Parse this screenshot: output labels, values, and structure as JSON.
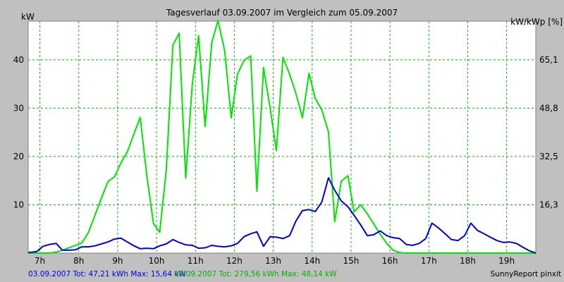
{
  "chart_data": {
    "type": "line",
    "title": "Tagesverlauf 03.09.2007 im Vergleich zum 05.09.2007",
    "ylabel_left": "kW",
    "ylabel_right": "kW/kWp [%]",
    "xlim": [
      6.7,
      19.75
    ],
    "ylim": [
      0,
      48
    ],
    "x_ticks": [
      {
        "value": 7,
        "label": "7h"
      },
      {
        "value": 8,
        "label": "8h"
      },
      {
        "value": 9,
        "label": "9h"
      },
      {
        "value": 10,
        "label": "10h"
      },
      {
        "value": 11,
        "label": "11h"
      },
      {
        "value": 12,
        "label": "12h"
      },
      {
        "value": 13,
        "label": "13h"
      },
      {
        "value": 14,
        "label": "14h"
      },
      {
        "value": 15,
        "label": "15h"
      },
      {
        "value": 16,
        "label": "16h"
      },
      {
        "value": 17,
        "label": "17h"
      },
      {
        "value": 18,
        "label": "18h"
      },
      {
        "value": 19,
        "label": "19h"
      }
    ],
    "y_ticks_left": [
      {
        "value": 10,
        "label": "10"
      },
      {
        "value": 20,
        "label": "20"
      },
      {
        "value": 30,
        "label": "30"
      },
      {
        "value": 40,
        "label": "40"
      }
    ],
    "y_ticks_right": [
      {
        "value": 10,
        "label": "16,3"
      },
      {
        "value": 20,
        "label": "32,5"
      },
      {
        "value": 30,
        "label": "48,8"
      },
      {
        "value": 40,
        "label": "65,1"
      }
    ],
    "grid": true,
    "series": [
      {
        "name": "03.09.2007",
        "color": "#0000e6",
        "x": [
          6.7,
          6.92,
          7.08,
          7.25,
          7.42,
          7.58,
          7.75,
          7.92,
          8.08,
          8.25,
          8.42,
          8.58,
          8.75,
          8.92,
          9.08,
          9.25,
          9.42,
          9.58,
          9.75,
          9.92,
          10.08,
          10.25,
          10.42,
          10.58,
          10.75,
          10.92,
          11.08,
          11.25,
          11.42,
          11.58,
          11.75,
          11.92,
          12.08,
          12.25,
          12.42,
          12.58,
          12.75,
          12.92,
          13.08,
          13.25,
          13.42,
          13.58,
          13.75,
          13.92,
          14.08,
          14.25,
          14.42,
          14.58,
          14.75,
          14.92,
          15.08,
          15.25,
          15.42,
          15.58,
          15.75,
          15.92,
          16.08,
          16.25,
          16.42,
          16.58,
          16.75,
          16.92,
          17.08,
          17.25,
          17.42,
          17.58,
          17.75,
          17.92,
          18.08,
          18.25,
          18.42,
          18.58,
          18.75,
          18.92,
          19.08,
          19.25,
          19.42,
          19.58,
          19.75
        ],
        "y": [
          0.1,
          0.3,
          1.4,
          1.8,
          2.0,
          0.6,
          0.6,
          0.7,
          1.3,
          1.3,
          1.5,
          1.9,
          2.3,
          2.9,
          3.1,
          2.3,
          1.5,
          0.9,
          1.0,
          0.9,
          1.5,
          1.9,
          2.8,
          2.2,
          1.7,
          1.6,
          1.0,
          1.1,
          1.6,
          1.4,
          1.3,
          1.5,
          2.0,
          3.4,
          4.0,
          4.4,
          1.4,
          3.4,
          3.3,
          3.0,
          3.6,
          6.6,
          8.8,
          9.0,
          8.6,
          10.6,
          15.6,
          13.0,
          10.8,
          9.6,
          7.8,
          5.8,
          3.6,
          3.8,
          4.6,
          3.6,
          3.2,
          3.0,
          1.8,
          1.6,
          2.0,
          3.0,
          6.2,
          5.2,
          4.0,
          2.8,
          2.6,
          3.6,
          6.2,
          4.7,
          4.0,
          3.3,
          2.6,
          2.2,
          2.3,
          2.0,
          1.2,
          0.5,
          0.0
        ]
      },
      {
        "name": "05.09.2007",
        "color": "#00e600",
        "x": [
          6.7,
          6.92,
          7.08,
          7.25,
          7.42,
          7.58,
          7.75,
          7.92,
          8.08,
          8.25,
          8.42,
          8.58,
          8.75,
          8.92,
          9.08,
          9.25,
          9.42,
          9.58,
          9.75,
          9.92,
          10.08,
          10.25,
          10.42,
          10.58,
          10.75,
          10.92,
          11.08,
          11.25,
          11.42,
          11.58,
          11.75,
          11.92,
          12.08,
          12.25,
          12.42,
          12.58,
          12.75,
          12.92,
          13.08,
          13.25,
          13.42,
          13.58,
          13.75,
          13.92,
          14.08,
          14.25,
          14.42,
          14.58,
          14.75,
          14.92,
          15.08,
          15.25,
          15.42,
          15.58,
          15.75,
          15.92,
          16.08,
          16.25,
          16.42,
          16.58,
          16.75,
          16.92,
          17.08,
          17.25,
          17.42,
          17.58,
          17.75,
          17.92,
          18.08,
          18.25,
          18.42,
          18.58,
          18.75,
          18.92,
          19.08,
          19.25,
          19.42,
          19.58,
          19.75
        ],
        "y": [
          0.0,
          0.0,
          0.0,
          0.0,
          0.2,
          0.6,
          1.1,
          1.6,
          2.1,
          4.3,
          7.9,
          11.3,
          14.8,
          15.8,
          18.6,
          21.0,
          24.7,
          28.1,
          16.0,
          6.1,
          4.3,
          17.2,
          43.0,
          45.5,
          15.5,
          35.0,
          45.0,
          26.2,
          43.6,
          48.1,
          42.0,
          28.0,
          37.0,
          39.9,
          40.8,
          12.8,
          38.4,
          30.0,
          21.2,
          40.5,
          37.0,
          33.1,
          28.0,
          37.2,
          32.0,
          29.6,
          25.1,
          6.5,
          14.9,
          16.0,
          8.5,
          10.0,
          8.1,
          6.1,
          3.9,
          2.0,
          0.6,
          0.1,
          0.0,
          0.0,
          0.0,
          0.0,
          0.0,
          0.0,
          0.0,
          0.0,
          0.0,
          0.0,
          0.0,
          0.0,
          0.0,
          0.0,
          0.0,
          0.0,
          0.0,
          0.0,
          0.0,
          0.0,
          0.0
        ]
      }
    ]
  },
  "footer": {
    "series1_summary": "03.09.2007 Tot: 47,21 kWh Max: 15,64 kW",
    "series2_summary": "05.09.2007 Tot: 279,56 kWh Max: 48,14 kW",
    "credit": "SunnyReport pinxit"
  },
  "colors": {
    "background": "#c0c0c0",
    "plot_bg": "#ffffff",
    "grid": "#00c000"
  }
}
